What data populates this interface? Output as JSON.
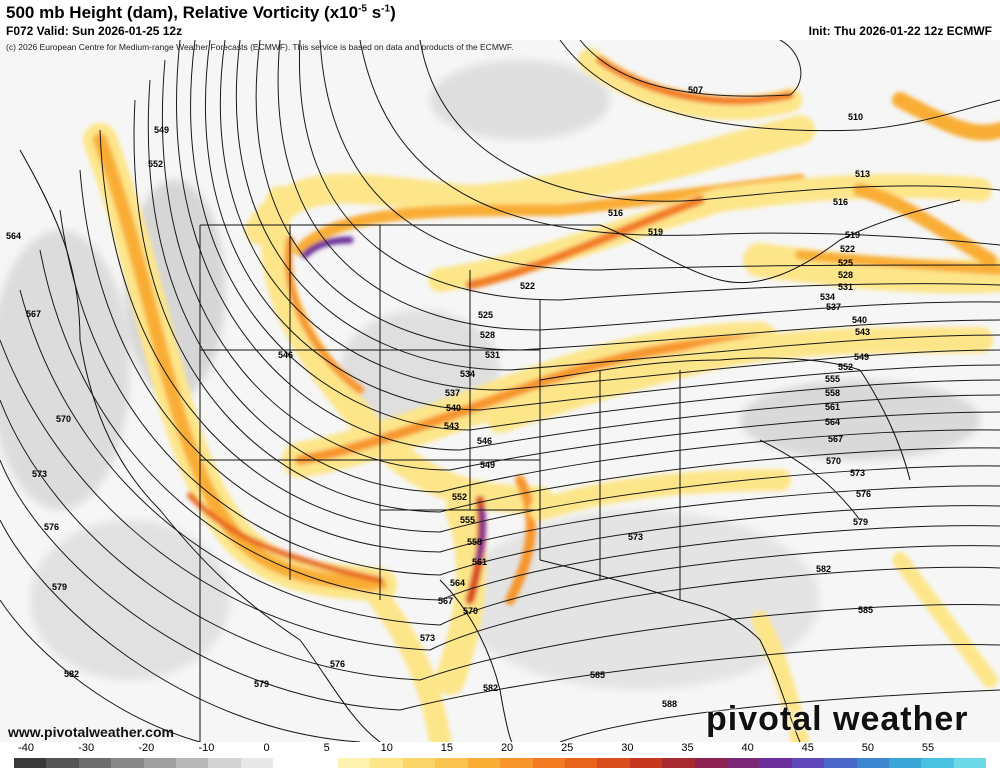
{
  "header": {
    "title": "500 mb Height (dam), Relative Vorticity (x10",
    "title_sup": "-5",
    "title_unit_mid": " s",
    "title_sup2": "-1",
    "title_end": ")",
    "valid": "F072 Valid: Sun 2026-01-25 12z",
    "init": "Init: Thu 2026-01-22 12z ECMWF"
  },
  "copyright": "(c) 2026 European Centre for Medium-range Weather Forecasts (ECMWF). This service is based on data and products of the ECMWF.",
  "footer": {
    "site": "www.pivotalweather.com",
    "logo": "pivotal weather"
  },
  "contour_labels": [
    "507",
    "510",
    "513",
    "516",
    "516",
    "519",
    "519",
    "522",
    "522",
    "525",
    "525",
    "528",
    "528",
    "531",
    "531",
    "534",
    "534",
    "537",
    "537",
    "540",
    "540",
    "543",
    "543",
    "546",
    "546",
    "549",
    "549",
    "549",
    "552",
    "552",
    "552",
    "555",
    "555",
    "558",
    "558",
    "561",
    "561",
    "564",
    "564",
    "564",
    "567",
    "567",
    "567",
    "570",
    "570",
    "570",
    "573",
    "573",
    "573",
    "573",
    "576",
    "576",
    "576",
    "579",
    "579",
    "579",
    "582",
    "582",
    "582",
    "585",
    "585",
    "588"
  ],
  "colorbar": {
    "ticks": [
      "-40",
      "-30",
      "-20",
      "-10",
      "0",
      "5",
      "10",
      "15",
      "20",
      "25",
      "30",
      "35",
      "40",
      "45",
      "50",
      "55"
    ],
    "colors": [
      "#3a3a3a",
      "#555555",
      "#6e6e6e",
      "#888888",
      "#a0a0a0",
      "#b9b9b9",
      "#d2d2d2",
      "#e8e8e8",
      "#ffffff",
      "#ffffff",
      "#fdf2b0",
      "#fde68a",
      "#fcd56a",
      "#fbc44e",
      "#f9ad35",
      "#f7952a",
      "#f27b22",
      "#e8641d",
      "#d94c1c",
      "#c5371f",
      "#a82a33",
      "#8c2350",
      "#7a2775",
      "#6c2e9a",
      "#5e46b8",
      "#4a66c8",
      "#3d86d0",
      "#3aa6d8",
      "#48c2e0",
      "#6cd8e8"
    ]
  },
  "colors": {
    "vort_low": "#fde68a",
    "vort_mid": "#f7952a",
    "vort_high": "#d94c1c",
    "vort_max": "#6c2e9a",
    "neg_vort": "#cfcfcf",
    "contour": "#1a1a1a",
    "borders": "#111111"
  }
}
